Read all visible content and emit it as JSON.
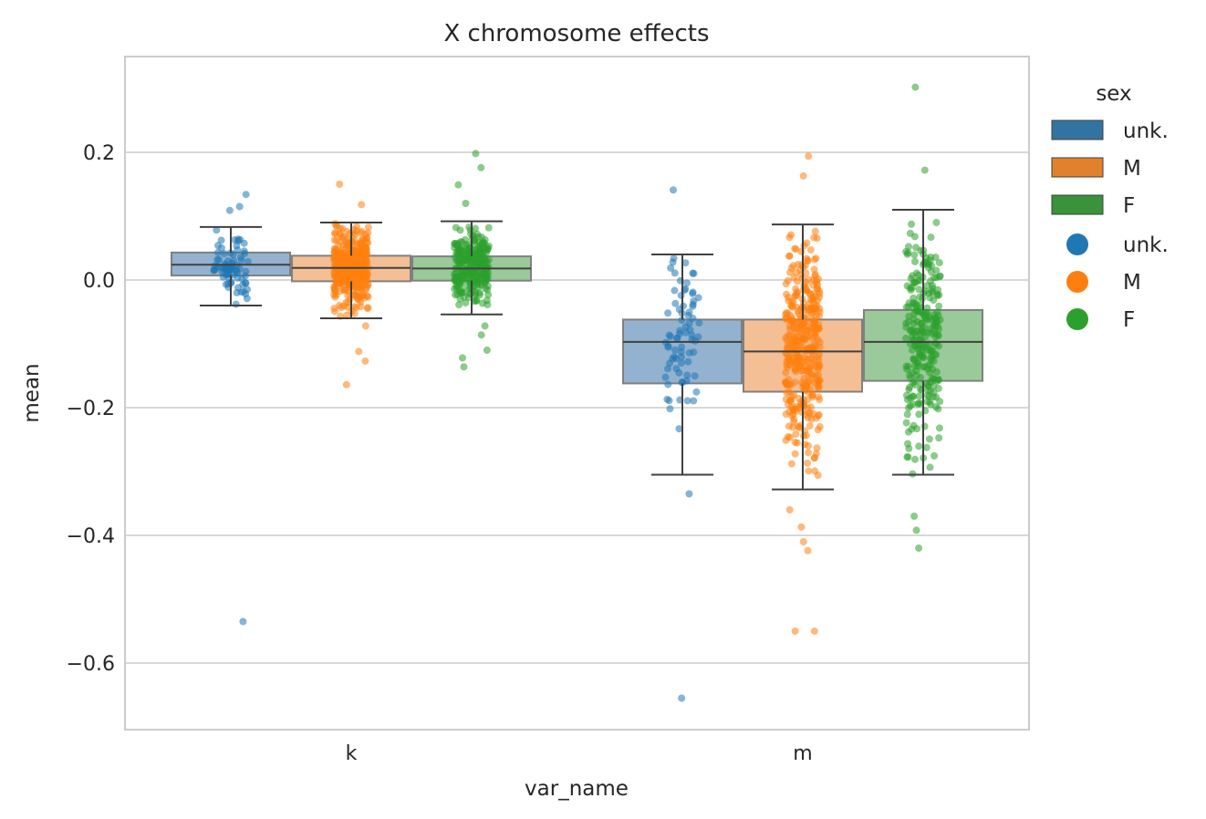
{
  "chart_data": {
    "type": "box",
    "title": "X chromosome effects",
    "xlabel": "var_name",
    "ylabel": "mean",
    "categories": [
      "k",
      "m"
    ],
    "ylim": [
      -0.705,
      0.35
    ],
    "yticks": [
      0.2,
      0.0,
      -0.2,
      -0.4,
      -0.6
    ],
    "ytick_labels": [
      "0.2",
      "0.0",
      "−0.2",
      "−0.4",
      "−0.6"
    ],
    "grid": true,
    "legend_title": "sex",
    "legend_position": "right, outside plot",
    "colors": {
      "unk.": "#1f77b4",
      "M": "#ff7f0e",
      "F": "#2ca02c",
      "box_fill_unk.": "#92b2d0",
      "box_fill_M": "#f4bf94",
      "box_fill_F": "#9ac99a",
      "box_edge": "#808080",
      "median": "#404040",
      "grid": "#cccccc",
      "legend_patch_unk.": "#3274a1",
      "legend_patch_M": "#e1812c",
      "legend_patch_F": "#3a923a"
    },
    "series": [
      {
        "name": "unk.",
        "boxes": [
          {
            "category": "k",
            "whisker_low": -0.04,
            "q1": 0.007,
            "median": 0.024,
            "q3": 0.043,
            "whisker_high": 0.083
          },
          {
            "category": "m",
            "whisker_low": -0.305,
            "q1": -0.162,
            "median": -0.097,
            "q3": -0.062,
            "whisker_high": 0.04
          }
        ],
        "notable_points": [
          {
            "category": "k",
            "y": 0.134
          },
          {
            "category": "k",
            "y": 0.115
          },
          {
            "category": "k",
            "y": 0.109
          },
          {
            "category": "k",
            "y": -0.038
          },
          {
            "category": "k",
            "y": -0.535
          },
          {
            "category": "m",
            "y": 0.141
          },
          {
            "category": "m",
            "y": -0.233
          },
          {
            "category": "m",
            "y": -0.335
          },
          {
            "category": "m",
            "y": -0.655
          }
        ]
      },
      {
        "name": "M",
        "boxes": [
          {
            "category": "k",
            "whisker_low": -0.06,
            "q1": -0.002,
            "median": 0.019,
            "q3": 0.038,
            "whisker_high": 0.09
          },
          {
            "category": "m",
            "whisker_low": -0.328,
            "q1": -0.175,
            "median": -0.112,
            "q3": -0.062,
            "whisker_high": 0.087
          }
        ],
        "notable_points": [
          {
            "category": "k",
            "y": 0.15
          },
          {
            "category": "k",
            "y": 0.118
          },
          {
            "category": "k",
            "y": -0.072
          },
          {
            "category": "k",
            "y": -0.112
          },
          {
            "category": "k",
            "y": -0.127
          },
          {
            "category": "k",
            "y": -0.164
          },
          {
            "category": "m",
            "y": 0.194
          },
          {
            "category": "m",
            "y": 0.163
          },
          {
            "category": "m",
            "y": -0.36
          },
          {
            "category": "m",
            "y": -0.387
          },
          {
            "category": "m",
            "y": -0.41
          },
          {
            "category": "m",
            "y": -0.424
          },
          {
            "category": "m",
            "y": -0.55
          },
          {
            "category": "m",
            "y": -0.55
          }
        ]
      },
      {
        "name": "F",
        "boxes": [
          {
            "category": "k",
            "whisker_low": -0.054,
            "q1": -0.001,
            "median": 0.018,
            "q3": 0.037,
            "whisker_high": 0.092
          },
          {
            "category": "m",
            "whisker_low": -0.305,
            "q1": -0.158,
            "median": -0.097,
            "q3": -0.047,
            "whisker_high": 0.11
          }
        ],
        "notable_points": [
          {
            "category": "k",
            "y": 0.198
          },
          {
            "category": "k",
            "y": 0.176
          },
          {
            "category": "k",
            "y": 0.149
          },
          {
            "category": "k",
            "y": 0.12
          },
          {
            "category": "k",
            "y": -0.072
          },
          {
            "category": "k",
            "y": -0.086
          },
          {
            "category": "k",
            "y": -0.11
          },
          {
            "category": "k",
            "y": -0.122
          },
          {
            "category": "k",
            "y": -0.136
          },
          {
            "category": "m",
            "y": 0.302
          },
          {
            "category": "m",
            "y": 0.172
          },
          {
            "category": "m",
            "y": 0.09
          },
          {
            "category": "m",
            "y": -0.37
          },
          {
            "category": "m",
            "y": -0.392
          },
          {
            "category": "m",
            "y": -0.42
          }
        ]
      }
    ],
    "legend": {
      "box_entries": [
        "unk.",
        "M",
        "F"
      ],
      "point_entries": [
        "unk.",
        "M",
        "F"
      ]
    }
  }
}
